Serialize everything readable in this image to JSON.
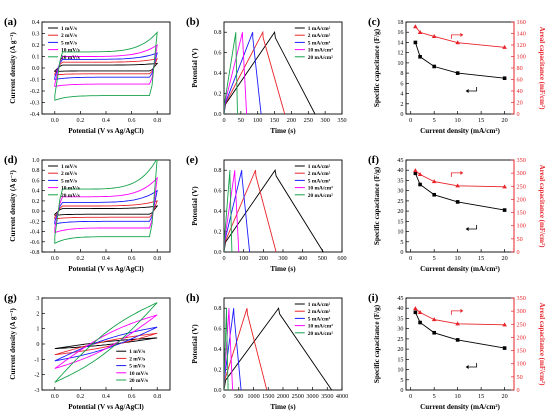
{
  "figure": {
    "colors": {
      "black": "#000000",
      "red": "#e8232a",
      "blue": "#1a1aff",
      "magenta": "#ff00ff",
      "green": "#16a34a",
      "grey": "#555555"
    }
  },
  "chart_data": [
    {
      "panel": "(a)",
      "type": "line",
      "xlabel": "Potential (V vs Ag/AgCl)",
      "ylabel": "Current density (A g⁻¹)",
      "xlim": [
        -0.1,
        0.9
      ],
      "ylim": [
        -0.4,
        0.4
      ],
      "xticks": [
        "0.0",
        "0.2",
        "0.4",
        "0.6",
        "0.8"
      ],
      "yticks": [
        "-0.4",
        "-0.3",
        "-0.2",
        "-0.1",
        "0.0",
        "0.1",
        "0.2",
        "0.3",
        "0.4"
      ],
      "legend_position": "top-left",
      "cv": {
        "x0": 0.0,
        "x1": 0.8,
        "series": [
          {
            "name": "1 mV/s",
            "color": "black",
            "upper": 0.025,
            "lower": -0.025,
            "spike": 0.04,
            "tail": -0.03
          },
          {
            "name": "2 mV/s",
            "color": "red",
            "upper": 0.05,
            "lower": -0.05,
            "spike": 0.08,
            "tail": -0.06
          },
          {
            "name": "5 mV/s",
            "color": "blue",
            "upper": 0.075,
            "lower": -0.08,
            "spike": 0.13,
            "tail": -0.1
          },
          {
            "name": "10 mV/s",
            "color": "magenta",
            "upper": 0.1,
            "lower": -0.14,
            "spike": 0.2,
            "tail": -0.16
          },
          {
            "name": "20 mV/s",
            "color": "green",
            "upper": 0.14,
            "lower": -0.24,
            "spike": 0.31,
            "tail": -0.28
          }
        ]
      }
    },
    {
      "panel": "(b)",
      "type": "line",
      "xlabel": "Time (s)",
      "ylabel": "Potential (V)",
      "xlim": [
        0,
        350
      ],
      "ylim": [
        0.0,
        0.9
      ],
      "xticks": [
        "0",
        "50",
        "100",
        "150",
        "200",
        "250",
        "300",
        "350"
      ],
      "yticks": [
        "0.0",
        "0.2",
        "0.4",
        "0.6",
        "0.8"
      ],
      "legend_position": "top-right",
      "gcd": {
        "vmax": 0.8,
        "series": [
          {
            "name": "1 mA/cm²",
            "color": "black",
            "t_peak": 150,
            "t_end": 270
          },
          {
            "name": "2 mA/cm²",
            "color": "red",
            "t_peak": 115,
            "t_end": 180
          },
          {
            "name": "5 mA/cm²",
            "color": "blue",
            "t_peak": 85,
            "t_end": 110
          },
          {
            "name": "10 mA/cm²",
            "color": "magenta",
            "t_peak": 55,
            "t_end": 67
          },
          {
            "name": "20 mA/cm²",
            "color": "green",
            "t_peak": 35,
            "t_end": 40
          }
        ]
      }
    },
    {
      "panel": "(c)",
      "type": "line",
      "xlabel": "Current density (mA/cm²)",
      "ylabel": "Specific capacitance (F/g)",
      "ylabel_right": "Areal capacitance (mF/cm²)",
      "xlim": [
        -1,
        22
      ],
      "ylim": [
        0,
        18
      ],
      "ylim_right": [
        0,
        160
      ],
      "xticks": [
        "0",
        "5",
        "10",
        "15",
        "20"
      ],
      "yticks": [
        "0",
        "2",
        "4",
        "6",
        "8",
        "10",
        "12",
        "14",
        "16",
        "18"
      ],
      "yticks_right": [
        "0",
        "20",
        "40",
        "60",
        "80",
        "100",
        "120",
        "140",
        "160"
      ],
      "x": [
        1,
        2,
        5,
        10,
        20
      ],
      "series": [
        {
          "name": "",
          "axis": "left",
          "color": "black",
          "marker": "square",
          "values": [
            14.0,
            11.2,
            9.3,
            8.0,
            7.0
          ]
        },
        {
          "name": "",
          "axis": "right",
          "color": "red",
          "marker": "triangle",
          "values": [
            152,
            142,
            135,
            124,
            116
          ]
        }
      ],
      "arrows": [
        {
          "axis": "left",
          "direction": "left"
        },
        {
          "axis": "right",
          "direction": "right"
        }
      ]
    },
    {
      "panel": "(d)",
      "type": "line",
      "xlabel": "Potential (V vs Ag/AgCl)",
      "ylabel": "Current density (A g⁻¹)",
      "xlim": [
        -0.1,
        0.9
      ],
      "ylim": [
        -0.8,
        1.0
      ],
      "xticks": [
        "0.0",
        "0.2",
        "0.4",
        "0.6",
        "0.8"
      ],
      "yticks": [
        "-0.8",
        "-0.6",
        "-0.4",
        "-0.2",
        "0.0",
        "0.2",
        "0.4",
        "0.6",
        "0.8",
        "1.0"
      ],
      "legend_position": "top-left",
      "cv": {
        "x0": 0.0,
        "x1": 0.8,
        "series": [
          {
            "name": "1 mV/s",
            "color": "black",
            "upper": 0.05,
            "lower": -0.06,
            "spike": 0.1,
            "tail": -0.08
          },
          {
            "name": "2 mV/s",
            "color": "red",
            "upper": 0.1,
            "lower": -0.12,
            "spike": 0.2,
            "tail": -0.15
          },
          {
            "name": "5 mV/s",
            "color": "blue",
            "upper": 0.17,
            "lower": -0.2,
            "spike": 0.4,
            "tail": -0.25
          },
          {
            "name": "10 mV/s",
            "color": "magenta",
            "upper": 0.28,
            "lower": -0.33,
            "spike": 0.65,
            "tail": -0.42
          },
          {
            "name": "20 mV/s",
            "color": "green",
            "upper": 0.43,
            "lower": -0.5,
            "spike": 1.03,
            "tail": -0.63
          }
        ]
      }
    },
    {
      "panel": "(e)",
      "type": "line",
      "xlabel": "Time (s)",
      "ylabel": "Potential (V)",
      "xlim": [
        0,
        600
      ],
      "ylim": [
        0.0,
        0.9
      ],
      "xticks": [
        "0",
        "100",
        "200",
        "300",
        "400",
        "500",
        "600"
      ],
      "yticks": [
        "0.0",
        "0.2",
        "0.4",
        "0.6",
        "0.8"
      ],
      "legend_position": "top-right",
      "gcd": {
        "vmax": 0.8,
        "series": [
          {
            "name": "1 mA/cm²",
            "color": "black",
            "t_peak": 260,
            "t_end": 505
          },
          {
            "name": "2 mA/cm²",
            "color": "red",
            "t_peak": 160,
            "t_end": 265
          },
          {
            "name": "5 mA/cm²",
            "color": "blue",
            "t_peak": 90,
            "t_end": 130
          },
          {
            "name": "10 mA/cm²",
            "color": "magenta",
            "t_peak": 55,
            "t_end": 75
          },
          {
            "name": "20 mA/cm²",
            "color": "green",
            "t_peak": 30,
            "t_end": 40
          }
        ]
      }
    },
    {
      "panel": "(f)",
      "type": "line",
      "xlabel": "Current density (mA/cm²)",
      "ylabel": "Specific capacitance (F/g)",
      "ylabel_right": "Areal capacitance (mF/cm²)",
      "xlim": [
        -1,
        22
      ],
      "ylim": [
        0,
        45
      ],
      "ylim_right": [
        0,
        350
      ],
      "xticks": [
        "0",
        "5",
        "10",
        "15",
        "20"
      ],
      "yticks": [
        "0",
        "5",
        "10",
        "15",
        "20",
        "25",
        "30",
        "35",
        "40",
        "45"
      ],
      "yticks_right": [
        "0",
        "50",
        "100",
        "150",
        "200",
        "250",
        "300",
        "350"
      ],
      "x": [
        1,
        2,
        5,
        10,
        20
      ],
      "series": [
        {
          "name": "",
          "axis": "left",
          "color": "black",
          "marker": "square",
          "values": [
            38.5,
            33.0,
            28.0,
            24.5,
            20.5
          ]
        },
        {
          "name": "",
          "axis": "right",
          "color": "red",
          "marker": "triangle",
          "values": [
            310,
            295,
            268,
            252,
            248
          ]
        }
      ],
      "arrows": [
        {
          "axis": "left",
          "direction": "left"
        },
        {
          "axis": "right",
          "direction": "right"
        }
      ]
    },
    {
      "panel": "(g)",
      "type": "line",
      "xlabel": "Potential (V vs Ag/AgCl)",
      "ylabel": "Current density (A g⁻¹)",
      "xlim": [
        -0.1,
        0.9
      ],
      "ylim": [
        -3,
        3
      ],
      "xticks": [
        "0.0",
        "0.2",
        "0.4",
        "0.6",
        "0.8"
      ],
      "yticks": [
        "-3",
        "-2",
        "-1",
        "0",
        "1",
        "2",
        "3"
      ],
      "legend_position": "bottom-right",
      "cv_tilted": {
        "x0": 0.0,
        "x1": 0.8,
        "series": [
          {
            "name": "1 mV/s",
            "color": "black",
            "y_lo": -0.3,
            "y_hi": 0.4,
            "width": 0.1
          },
          {
            "name": "2 mV/s",
            "color": "red",
            "y_lo": -0.7,
            "y_hi": 0.7,
            "width": 0.18
          },
          {
            "name": "5 mV/s",
            "color": "blue",
            "y_lo": -1.1,
            "y_hi": 1.1,
            "width": 0.3
          },
          {
            "name": "10 mV/s",
            "color": "magenta",
            "y_lo": -1.6,
            "y_hi": 1.9,
            "width": 0.45
          },
          {
            "name": "20 mV/s",
            "color": "green",
            "y_lo": -2.5,
            "y_hi": 2.7,
            "width": 0.65
          }
        ]
      }
    },
    {
      "panel": "(h)",
      "type": "line",
      "xlabel": "Time (s)",
      "ylabel": "Potential (V)",
      "xlim": [
        0,
        4000
      ],
      "ylim": [
        0.0,
        0.9
      ],
      "xticks": [
        "0",
        "500",
        "1000",
        "1500",
        "2000",
        "2500",
        "3000",
        "3500",
        "4000"
      ],
      "yticks": [
        "0.0",
        "0.2",
        "0.4",
        "0.6",
        "0.8"
      ],
      "legend_position": "top-right",
      "gcd": {
        "vmax": 0.8,
        "series": [
          {
            "name": "1 mA/cm²",
            "color": "black",
            "t_peak": 1850,
            "t_end": 3650
          },
          {
            "name": "2 mA/cm²",
            "color": "red",
            "t_peak": 780,
            "t_end": 1450
          },
          {
            "name": "5 mA/cm²",
            "color": "blue",
            "t_peak": 330,
            "t_end": 580
          },
          {
            "name": "10 mA/cm²",
            "color": "magenta",
            "t_peak": 170,
            "t_end": 290
          },
          {
            "name": "20 mA/cm²",
            "color": "green",
            "t_peak": 85,
            "t_end": 140
          }
        ]
      }
    },
    {
      "panel": "(i)",
      "type": "line",
      "xlabel": "Current density (mA/cm²)",
      "ylabel": "Specific capacitance (F/g)",
      "ylabel_right": "Areal capacitance (mF/cm²)",
      "xlim": [
        -1,
        22
      ],
      "ylim": [
        0,
        45
      ],
      "ylim_right": [
        0,
        350
      ],
      "xticks": [
        "0",
        "5",
        "10",
        "15",
        "20"
      ],
      "yticks": [
        "0",
        "5",
        "10",
        "15",
        "20",
        "25",
        "30",
        "35",
        "40",
        "45"
      ],
      "yticks_right": [
        "0",
        "50",
        "100",
        "150",
        "200",
        "250",
        "300",
        "350"
      ],
      "x": [
        1,
        2,
        5,
        10,
        20
      ],
      "series": [
        {
          "name": "",
          "axis": "left",
          "color": "black",
          "marker": "square",
          "values": [
            38.0,
            33.0,
            28.0,
            24.5,
            20.5
          ]
        },
        {
          "name": "",
          "axis": "right",
          "color": "red",
          "marker": "triangle",
          "values": [
            310,
            295,
            268,
            252,
            248
          ]
        }
      ],
      "arrows": [
        {
          "axis": "left",
          "direction": "left"
        },
        {
          "axis": "right",
          "direction": "right"
        }
      ]
    }
  ]
}
